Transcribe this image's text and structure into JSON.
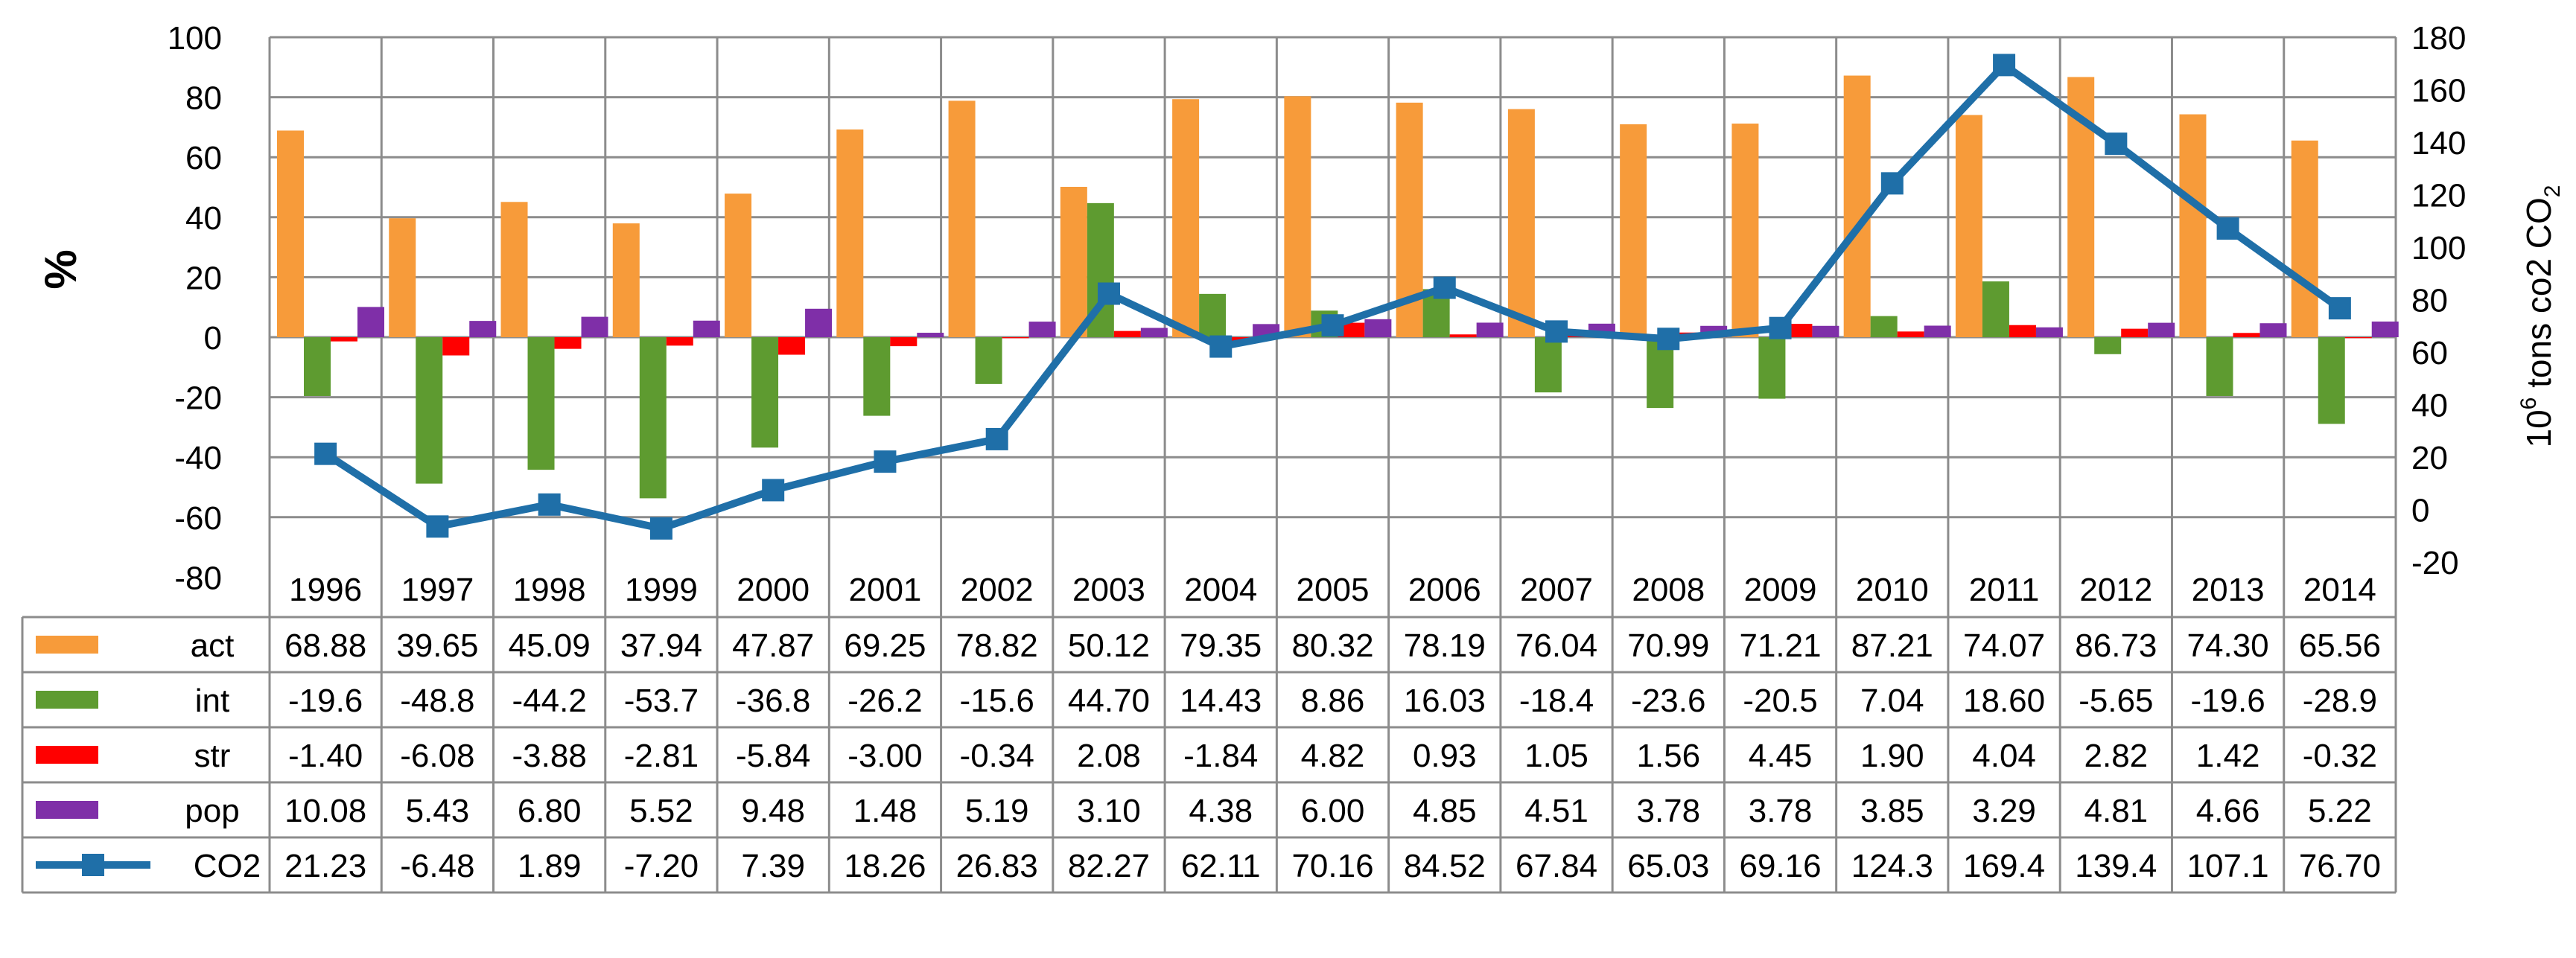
{
  "chart_data": {
    "type": "bar+line",
    "title": "",
    "categories": [
      "1996",
      "1997",
      "1998",
      "1999",
      "2000",
      "2001",
      "2002",
      "2003",
      "2004",
      "2005",
      "2006",
      "2007",
      "2008",
      "2009",
      "2010",
      "2011",
      "2012",
      "2013",
      "2014"
    ],
    "series": [
      {
        "key": "act",
        "name": "act",
        "type": "bar",
        "axis": "left",
        "color": "#F79B3A",
        "values": [
          68.88,
          39.65,
          45.09,
          37.94,
          47.87,
          69.25,
          78.82,
          50.12,
          79.35,
          80.32,
          78.19,
          76.04,
          70.99,
          71.21,
          87.21,
          74.07,
          86.73,
          74.3,
          65.56
        ],
        "labels": [
          "68.88",
          "39.65",
          "45.09",
          "37.94",
          "47.87",
          "69.25",
          "78.82",
          "50.12",
          "79.35",
          "80.32",
          "78.19",
          "76.04",
          "70.99",
          "71.21",
          "87.21",
          "74.07",
          "86.73",
          "74.30",
          "65.56"
        ]
      },
      {
        "key": "int",
        "name": "int",
        "type": "bar",
        "axis": "left",
        "color": "#5E9B30",
        "values": [
          -19.6,
          -48.8,
          -44.2,
          -53.7,
          -36.8,
          -26.2,
          -15.6,
          44.7,
          14.43,
          8.86,
          16.03,
          -18.4,
          -23.6,
          -20.5,
          7.04,
          18.6,
          -5.65,
          -19.6,
          -28.9
        ],
        "labels": [
          "-19.6",
          "-48.8",
          "-44.2",
          "-53.7",
          "-36.8",
          "-26.2",
          "-15.6",
          "44.70",
          "14.43",
          "8.86",
          "16.03",
          "-18.4",
          "-23.6",
          "-20.5",
          "7.04",
          "18.60",
          "-5.65",
          "-19.6",
          "-28.9"
        ]
      },
      {
        "key": "str",
        "name": "str",
        "type": "bar",
        "axis": "left",
        "color": "#FF0000",
        "values": [
          -1.4,
          -6.08,
          -3.88,
          -2.81,
          -5.84,
          -3.0,
          -0.34,
          2.08,
          -1.84,
          4.82,
          0.93,
          1.05,
          1.56,
          4.45,
          1.9,
          4.04,
          2.82,
          1.42,
          -0.32
        ],
        "labels": [
          "-1.40",
          "-6.08",
          "-3.88",
          "-2.81",
          "-5.84",
          "-3.00",
          "-0.34",
          "2.08",
          "-1.84",
          "4.82",
          "0.93",
          "1.05",
          "1.56",
          "4.45",
          "1.90",
          "4.04",
          "2.82",
          "1.42",
          "-0.32"
        ]
      },
      {
        "key": "pop",
        "name": "pop",
        "type": "bar",
        "axis": "left",
        "color": "#7F2FA8",
        "values": [
          10.08,
          5.43,
          6.8,
          5.52,
          9.48,
          1.48,
          5.19,
          3.1,
          4.38,
          6.0,
          4.85,
          4.51,
          3.78,
          3.78,
          3.85,
          3.29,
          4.81,
          4.66,
          5.22
        ],
        "labels": [
          "10.08",
          "5.43",
          "6.80",
          "5.52",
          "9.48",
          "1.48",
          "5.19",
          "3.10",
          "4.38",
          "6.00",
          "4.85",
          "4.51",
          "3.78",
          "3.78",
          "3.85",
          "3.29",
          "4.81",
          "4.66",
          "5.22"
        ]
      },
      {
        "key": "co2",
        "name": "CO2",
        "type": "line",
        "axis": "right",
        "color": "#1F6FA8",
        "values": [
          21.23,
          -6.48,
          1.89,
          -7.2,
          7.39,
          18.26,
          26.83,
          82.27,
          62.11,
          70.16,
          84.52,
          67.84,
          65.03,
          69.16,
          124.3,
          169.4,
          139.4,
          107.1,
          76.7
        ],
        "labels": [
          "21.23",
          "-6.48",
          "1.89",
          "-7.20",
          "7.39",
          "18.26",
          "26.83",
          "82.27",
          "62.11",
          "70.16",
          "84.52",
          "67.84",
          "65.03",
          "69.16",
          "124.3",
          "169.4",
          "139.4",
          "107.1",
          "76.70"
        ]
      }
    ],
    "left_axis": {
      "label": "%",
      "min": -80,
      "max": 100,
      "step": 20,
      "ticks": [
        "-80",
        "-60",
        "-40",
        "-20",
        "0",
        "20",
        "40",
        "60",
        "80",
        "100"
      ]
    },
    "right_axis": {
      "label": "10",
      "label_sup": "6",
      "label_rest": " tons co2  CO",
      "label_sub": "2",
      "min": -20,
      "max": 180,
      "step": 20,
      "ticks": [
        "-20",
        "0",
        "20",
        "40",
        "60",
        "80",
        "100",
        "120",
        "140",
        "160",
        "180"
      ]
    },
    "grid": true,
    "legend": "data table below chart"
  }
}
